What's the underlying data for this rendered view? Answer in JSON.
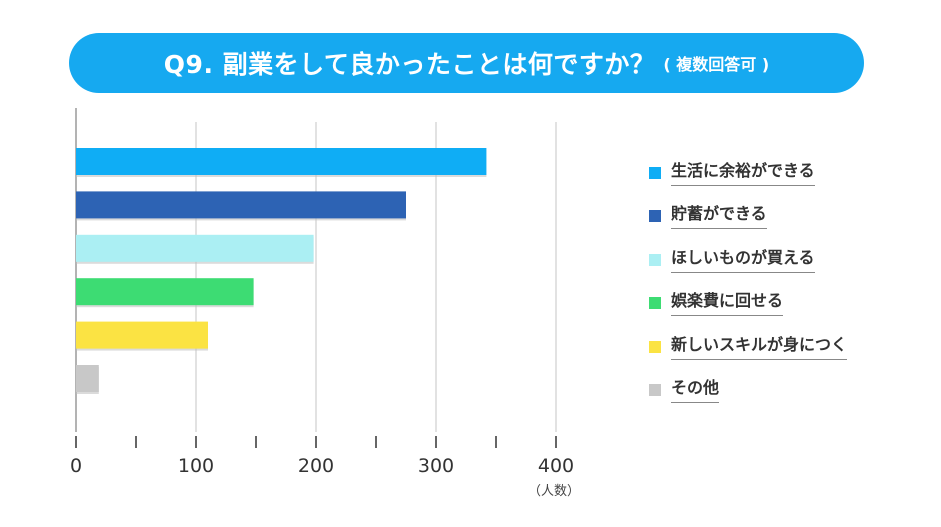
{
  "title": {
    "main": "Q9. 副業をして良かったことは何ですか？",
    "sub": "( 複数回答可 )",
    "background": "#16a9f0"
  },
  "chart_data": {
    "type": "bar",
    "orientation": "horizontal",
    "categories": [
      "生活に余裕ができる",
      "貯蓄ができる",
      "ほしいものが買える",
      "娯楽費に回せる",
      "新しいスキルが身につく",
      "その他"
    ],
    "values": [
      342,
      275,
      198,
      148,
      110,
      19
    ],
    "colors": [
      "#0fadf5",
      "#2d63b4",
      "#abeff3",
      "#3ddc73",
      "#fbe343",
      "#c8c8c8"
    ],
    "xlim": [
      0,
      400
    ],
    "xticks": [
      "0",
      "100",
      "200",
      "300",
      "400"
    ],
    "xlabel": "（人数）",
    "grid": true,
    "legend_position": "right"
  }
}
